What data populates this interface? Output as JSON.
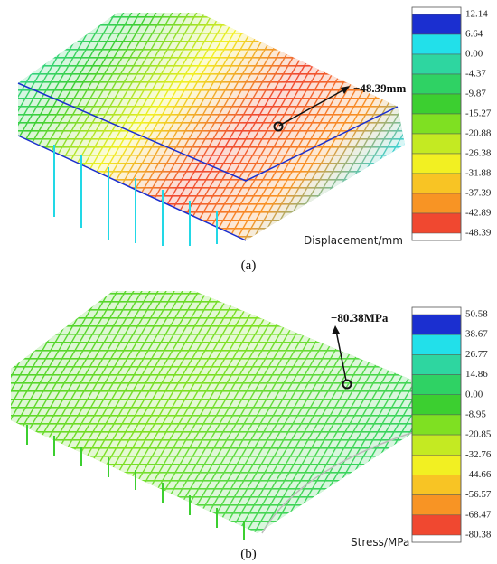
{
  "panels": [
    {
      "legend": {
        "title": "Displacement/mm",
        "labels": [
          "12.14",
          "6.64",
          "0.00",
          "-4.37",
          "-9.87",
          "-15.27",
          "-20.88",
          "-26.38",
          "-31.88",
          "-37.39",
          "-42.89",
          "-48.39"
        ],
        "colors": [
          "#1b2fd0",
          "#22e0ea",
          "#2ed6a0",
          "#2fd264",
          "#3ccf30",
          "#7fe022",
          "#c4ea22",
          "#f2f022",
          "#f8c424",
          "#f89424",
          "#f04830"
        ]
      },
      "annotation": "−48.39mm",
      "caption": "(a)"
    },
    {
      "legend": {
        "title": "Stress/MPa",
        "labels": [
          "50.58",
          "38.67",
          "26.77",
          "14.86",
          "0.00",
          "-8.95",
          "-20.85",
          "-32.76",
          "-44.66",
          "-56.57",
          "-68.47",
          "-80.38"
        ],
        "colors": [
          "#1b2fd0",
          "#22e0ea",
          "#2ed6a0",
          "#2fd264",
          "#3ccf30",
          "#7fe022",
          "#c4ea22",
          "#f2f022",
          "#f8c424",
          "#f89424",
          "#f04830"
        ]
      },
      "annotation": "−80.38MPa",
      "caption": "(b)"
    }
  ]
}
